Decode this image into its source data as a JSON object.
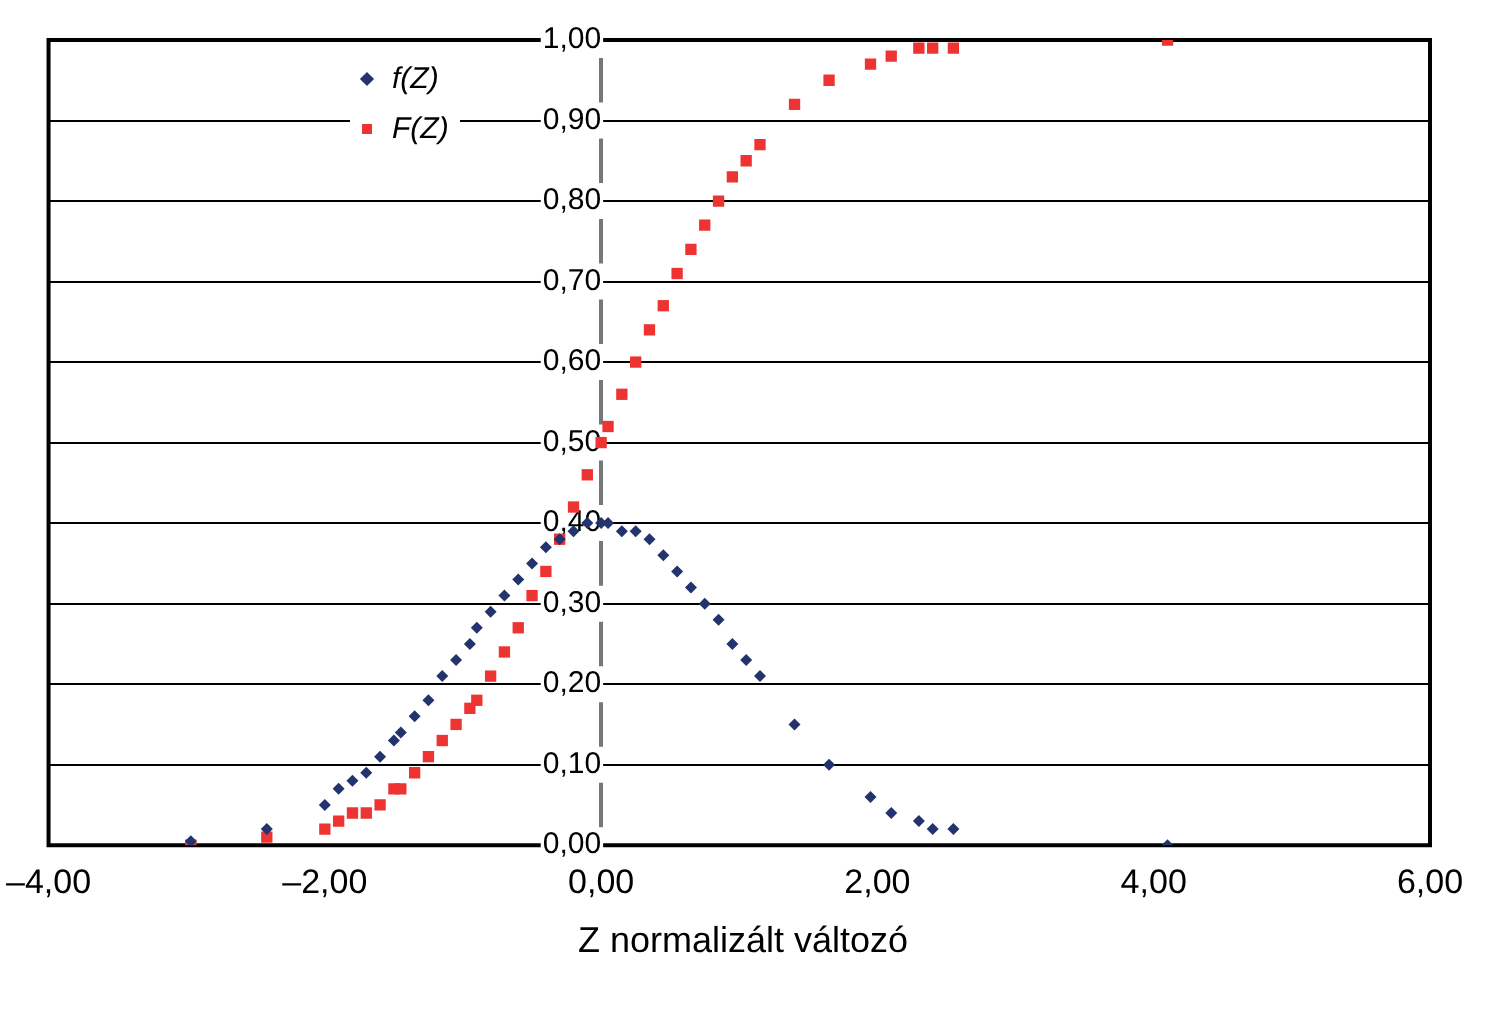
{
  "chart_data": {
    "type": "scatter",
    "xlabel": "Z normalizált változó",
    "x": [
      -2.97,
      -2.42,
      -2.0,
      -1.9,
      -1.8,
      -1.7,
      -1.6,
      -1.5,
      -1.45,
      -1.35,
      -1.25,
      -1.15,
      -1.05,
      -0.95,
      -0.9,
      -0.8,
      -0.7,
      -0.6,
      -0.5,
      -0.4,
      -0.3,
      -0.2,
      -0.1,
      0,
      0.05,
      0.15,
      0.25,
      0.35,
      0.45,
      0.55,
      0.65,
      0.75,
      0.85,
      0.95,
      1.05,
      1.15,
      1.4,
      1.65,
      1.95,
      2.1,
      2.3,
      2.4,
      2.55,
      4.1
    ],
    "series": [
      {
        "name": "f(Z)",
        "color": "#22336e",
        "marker": "diamond",
        "values": [
          0.005,
          0.02,
          0.05,
          0.07,
          0.08,
          0.09,
          0.11,
          0.13,
          0.14,
          0.16,
          0.18,
          0.21,
          0.23,
          0.25,
          0.27,
          0.29,
          0.31,
          0.33,
          0.35,
          0.37,
          0.38,
          0.39,
          0.4,
          0.4,
          0.4,
          0.39,
          0.39,
          0.38,
          0.36,
          0.34,
          0.32,
          0.3,
          0.28,
          0.25,
          0.23,
          0.21,
          0.15,
          0.1,
          0.06,
          0.04,
          0.03,
          0.02,
          0.02,
          0.0
        ]
      },
      {
        "name": "F(Z)",
        "color": "#ee3333",
        "marker": "square",
        "values": [
          0.0,
          0.01,
          0.02,
          0.03,
          0.04,
          0.04,
          0.05,
          0.07,
          0.07,
          0.09,
          0.11,
          0.13,
          0.15,
          0.17,
          0.18,
          0.21,
          0.24,
          0.27,
          0.31,
          0.34,
          0.38,
          0.42,
          0.46,
          0.5,
          0.52,
          0.56,
          0.6,
          0.64,
          0.67,
          0.71,
          0.74,
          0.77,
          0.8,
          0.83,
          0.85,
          0.87,
          0.92,
          0.95,
          0.97,
          0.98,
          0.99,
          0.99,
          0.99,
          1.0
        ]
      }
    ],
    "xlim": [
      -4,
      6
    ],
    "xticks": [
      {
        "value": -4,
        "label": "–4,00"
      },
      {
        "value": -2,
        "label": "–2,00"
      },
      {
        "value": 0,
        "label": "0,00"
      },
      {
        "value": 2,
        "label": "2,00"
      },
      {
        "value": 4,
        "label": "4,00"
      },
      {
        "value": 6,
        "label": "6,00"
      }
    ],
    "ylim": [
      0,
      1
    ],
    "yticks": [
      {
        "value": 0,
        "label": "0,00"
      },
      {
        "value": 0.1,
        "label": "0,10"
      },
      {
        "value": 0.2,
        "label": "0,20"
      },
      {
        "value": 0.3,
        "label": "0,30"
      },
      {
        "value": 0.4,
        "label": "0,40"
      },
      {
        "value": 0.5,
        "label": "0,50"
      },
      {
        "value": 0.6,
        "label": "0,60"
      },
      {
        "value": 0.7,
        "label": "0,70"
      },
      {
        "value": 0.8,
        "label": "0,80"
      },
      {
        "value": 0.9,
        "label": "0,90"
      },
      {
        "value": 1,
        "label": "1,00"
      }
    ],
    "grid": "y",
    "legend": "top left"
  }
}
